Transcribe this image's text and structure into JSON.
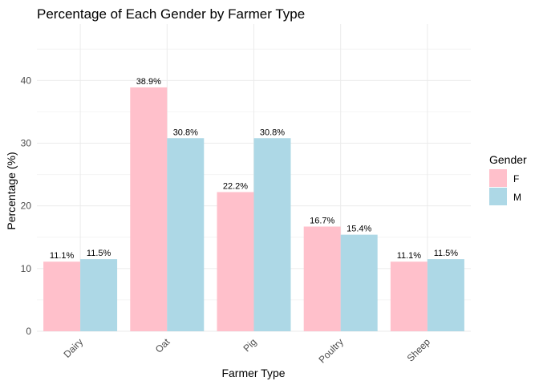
{
  "chart_data": {
    "type": "bar",
    "title": "Percentage of Each Gender by Farmer Type",
    "xlabel": "Farmer Type",
    "ylabel": "Percentage (%)",
    "categories": [
      "Dairy",
      "Oat",
      "Pig",
      "Poultry",
      "Sheep"
    ],
    "series": [
      {
        "name": "F",
        "color": "#ffc0cb",
        "values": [
          11.1,
          38.9,
          22.2,
          16.7,
          11.1
        ],
        "labels": [
          "11.1%",
          "38.9%",
          "22.2%",
          "16.7%",
          "11.1%"
        ]
      },
      {
        "name": "M",
        "color": "#add8e6",
        "values": [
          11.5,
          30.8,
          30.8,
          15.4,
          11.5
        ],
        "labels": [
          "11.5%",
          "30.8%",
          "30.8%",
          "15.4%",
          "11.5%"
        ]
      }
    ],
    "ylim": [
      0,
      49
    ],
    "yticks": [
      0,
      10,
      20,
      30,
      40
    ],
    "yticks_labels": [
      "0",
      "10",
      "20",
      "30",
      "40"
    ],
    "grid": true,
    "legend": {
      "title": "Gender",
      "placement": "right"
    }
  }
}
